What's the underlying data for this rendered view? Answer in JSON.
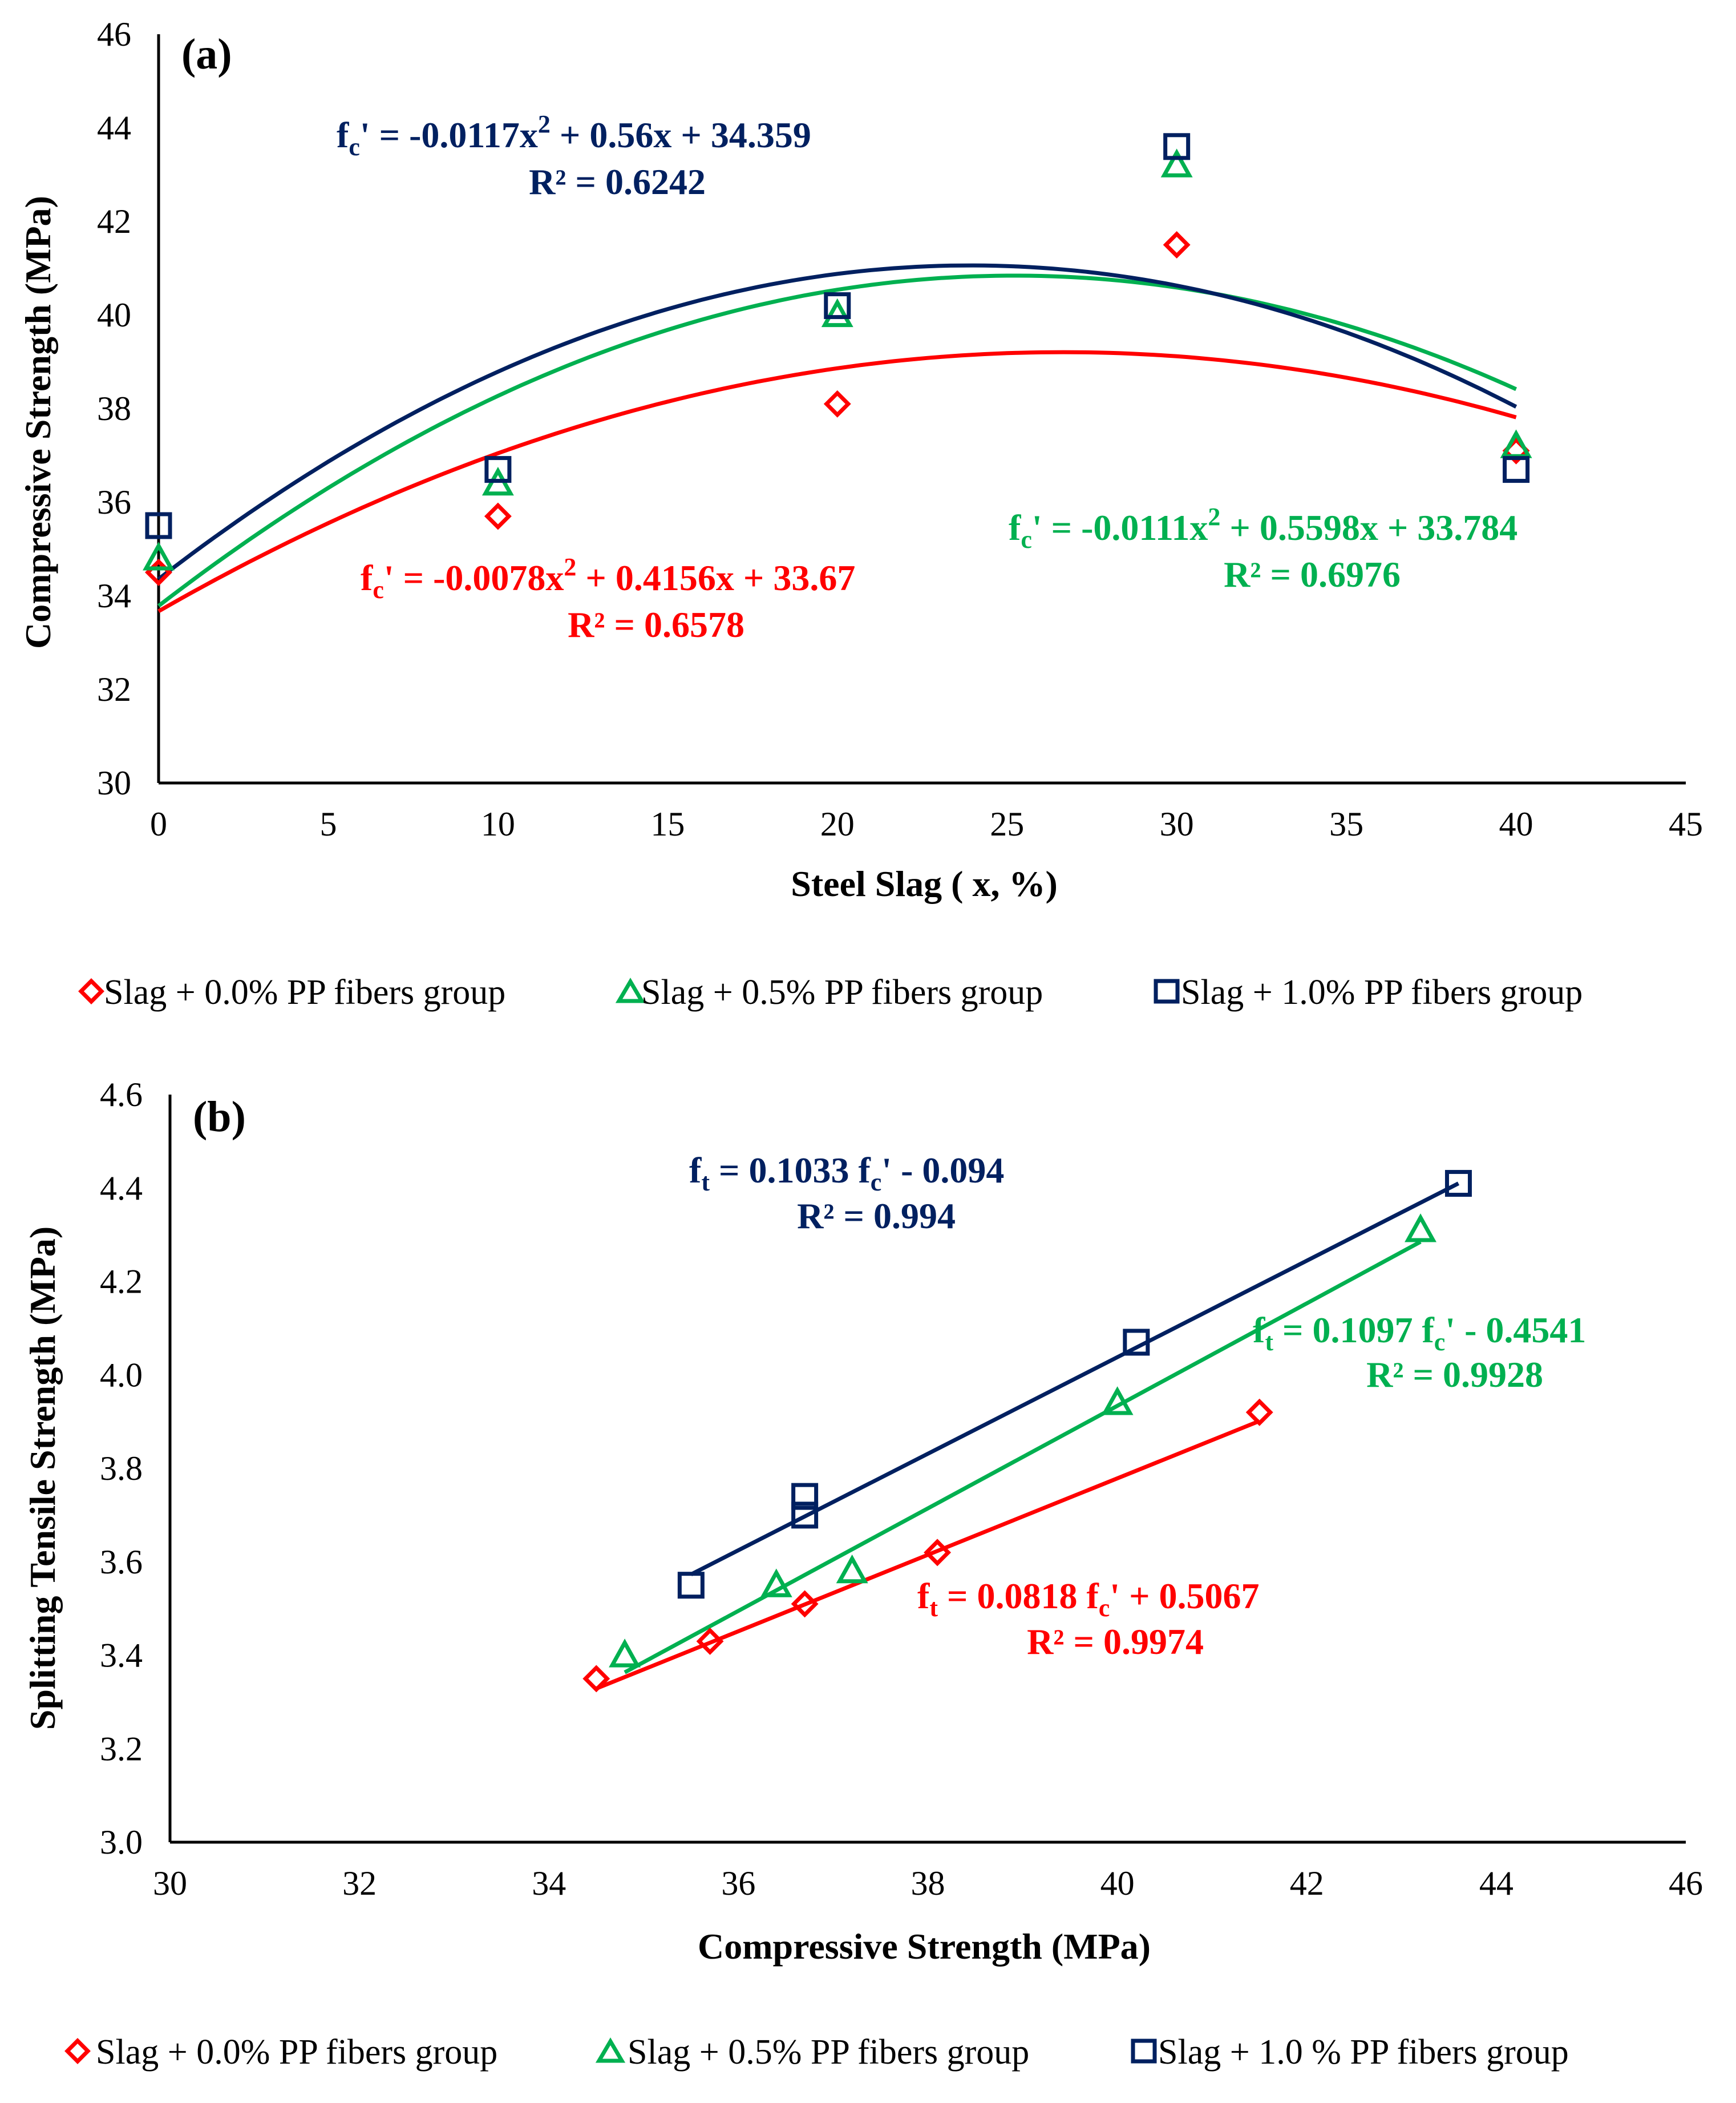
{
  "colors": {
    "red": "#ff0000",
    "green": "#00b050",
    "navy": "#002060",
    "axis": "#000000"
  },
  "chart_data": [
    {
      "panel_label": "(a)",
      "type": "scatter",
      "xlabel": "Steel Slag ( x, %)",
      "ylabel": "Compressive Strength (MPa)",
      "xlim": [
        0,
        45
      ],
      "ylim": [
        30,
        46
      ],
      "xticks": [
        "0",
        "5",
        "10",
        "15",
        "20",
        "25",
        "30",
        "35",
        "40",
        "45"
      ],
      "yticks": [
        "30",
        "32",
        "34",
        "36",
        "38",
        "40",
        "42",
        "44",
        "46"
      ],
      "grid": false,
      "legend_position": "bottom",
      "series": [
        {
          "name": "Slag + 0.0% PP fibers group",
          "marker": "diamond",
          "color": "#ff0000",
          "x": [
            0,
            10,
            20,
            30,
            40
          ],
          "y": [
            34.5,
            35.7,
            38.1,
            41.5,
            37.1
          ],
          "trendline": {
            "type": "poly2",
            "coefficients": [
              -0.0078,
              0.4156,
              33.67
            ]
          },
          "equation_lines": [
            "-0.0078x",
            " + 0.4156x + 33.67"
          ],
          "equation_prefix": "f",
          "equation_sub": "c",
          "equation_sup": "2",
          "r2_label": "R² = 0.6578"
        },
        {
          "name": "Slag + 0.5% PP fibers group",
          "marker": "triangle",
          "color": "#00b050",
          "x": [
            0,
            10,
            20,
            30,
            40
          ],
          "y": [
            34.8,
            36.4,
            40.0,
            43.2,
            37.2
          ],
          "trendline": {
            "type": "poly2",
            "coefficients": [
              -0.0111,
              0.5598,
              33.784
            ]
          },
          "equation_lines": [
            "-0.0111x",
            " + 0.5598x + 33.784"
          ],
          "equation_prefix": "f",
          "equation_sub": "c",
          "equation_sup": "2",
          "r2_label": "R² = 0.6976"
        },
        {
          "name": "Slag + 1.0% PP fibers group",
          "marker": "square",
          "color": "#002060",
          "x": [
            0,
            10,
            20,
            30,
            40
          ],
          "y": [
            35.5,
            36.7,
            40.2,
            43.6,
            36.7
          ],
          "trendline": {
            "type": "poly2",
            "coefficients": [
              -0.0117,
              0.56,
              34.359
            ]
          },
          "equation_lines": [
            "-0.0117x",
            " + 0.56x + 34.359"
          ],
          "equation_prefix": "f",
          "equation_sub": "c",
          "equation_sup": "2",
          "r2_label": "R² = 0.6242"
        }
      ],
      "legend": [
        "Slag + 0.0% PP fibers group",
        "Slag + 0.5% PP fibers group",
        "Slag + 1.0% PP fibers group"
      ]
    },
    {
      "panel_label": "(b)",
      "type": "scatter",
      "xlabel": "Compressive Strength (MPa)",
      "ylabel": "Splitting  Tensile Strength (MPa)",
      "xlim": [
        30,
        46
      ],
      "ylim": [
        3.0,
        4.6
      ],
      "xticks": [
        "30",
        "32",
        "34",
        "36",
        "38",
        "40",
        "42",
        "44",
        "46"
      ],
      "yticks": [
        "3.0",
        "3.2",
        "3.4",
        "3.6",
        "3.8",
        "4.0",
        "4.2",
        "4.4",
        "4.6"
      ],
      "grid": false,
      "legend_position": "bottom",
      "series": [
        {
          "name": "Slag + 0.0% PP fibers group",
          "marker": "diamond",
          "color": "#ff0000",
          "x": [
            34.5,
            35.7,
            36.7,
            38.1,
            41.5
          ],
          "y": [
            3.35,
            3.43,
            3.51,
            3.62,
            3.92
          ],
          "trendline": {
            "type": "linear",
            "slope": 0.0818,
            "intercept": 0.5067,
            "x_range": [
              34.5,
              41.5
            ]
          },
          "equation_prefix": "f",
          "equation_sub": "t",
          "equation_mid": " = 0.0818 f",
          "equation_sub2": "c",
          "equation_tail": "' + 0.5067",
          "r2_label": "R² = 0.9974"
        },
        {
          "name": "Slag + 0.5% PP fibers group",
          "marker": "triangle",
          "color": "#00b050",
          "x": [
            34.8,
            36.4,
            37.2,
            40.0,
            43.2
          ],
          "y": [
            3.4,
            3.55,
            3.58,
            3.94,
            4.31
          ],
          "trendline": {
            "type": "linear",
            "slope": 0.1097,
            "intercept": -0.4541,
            "x_range": [
              34.8,
              43.2
            ]
          },
          "equation_prefix": "f",
          "equation_sub": "t",
          "equation_mid": " = 0.1097 f",
          "equation_sub2": "c",
          "equation_tail": "' - 0.4541",
          "r2_label": "R² = 0.9928"
        },
        {
          "name": "Slag + 1.0 % PP fibers group",
          "marker": "square",
          "color": "#002060",
          "x": [
            35.5,
            36.7,
            36.7,
            40.2,
            43.6
          ],
          "y": [
            3.55,
            3.7,
            3.74,
            4.07,
            4.41
          ],
          "trendline": {
            "type": "linear",
            "slope": 0.1033,
            "intercept": -0.094,
            "x_range": [
              35.5,
              43.6
            ]
          },
          "equation_prefix": "f",
          "equation_sub": "t",
          "equation_mid": " = 0.1033 f",
          "equation_sub2": "c",
          "equation_tail": "' - 0.094",
          "r2_label": "R² = 0.994"
        }
      ],
      "legend": [
        "Slag + 0.0% PP fibers group",
        "Slag + 0.5% PP fibers group",
        "Slag + 1.0 % PP fibers group"
      ]
    }
  ]
}
